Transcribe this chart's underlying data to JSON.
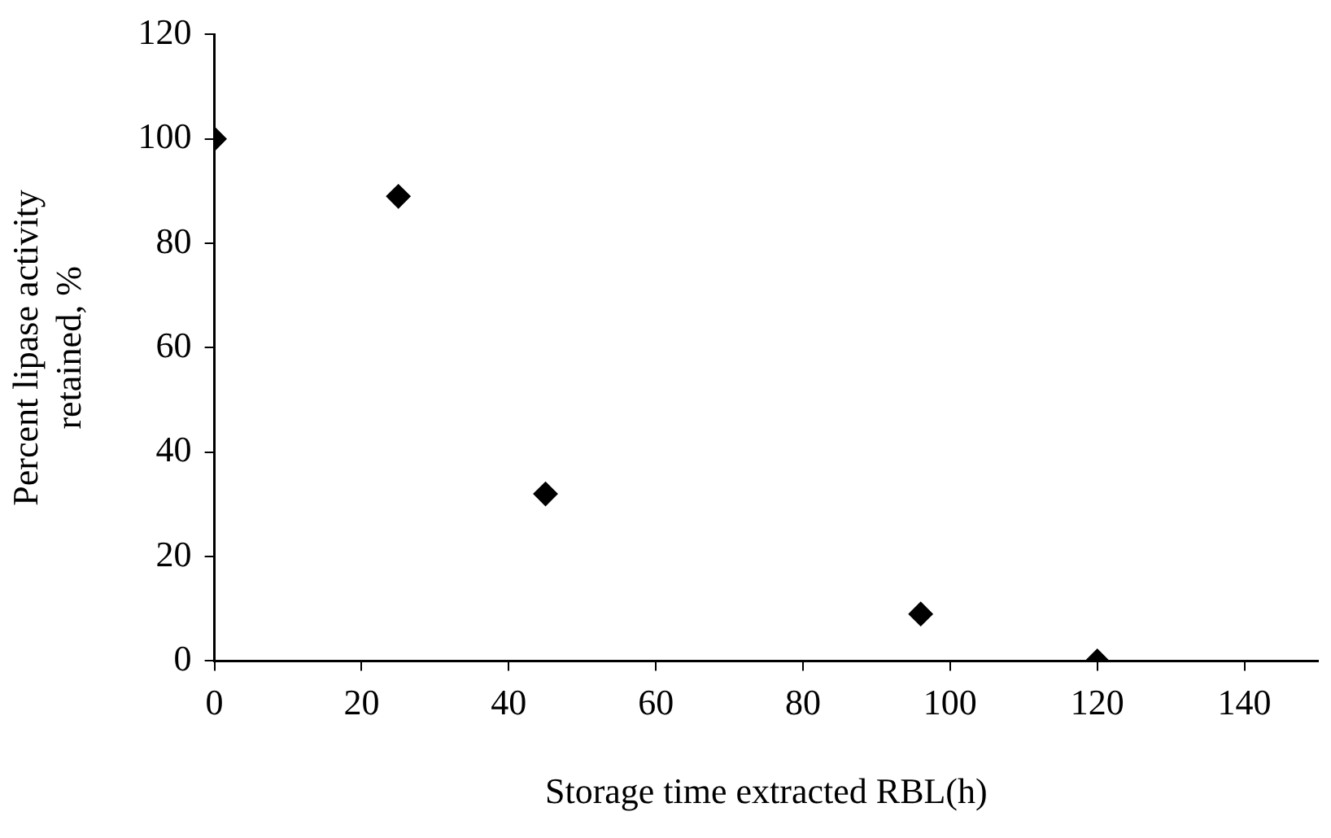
{
  "chart_data": {
    "type": "scatter",
    "xlabel": "Storage time extracted RBL(h)",
    "ylabel": "Percent lipase activity retained, %",
    "x": [
      0,
      25,
      45,
      96,
      120
    ],
    "series": [
      {
        "color": "#000000",
        "values": [
          100,
          89,
          32,
          9,
          0
        ]
      }
    ],
    "xlim": [
      0,
      150
    ],
    "xticks": [
      0,
      20,
      40,
      60,
      80,
      100,
      120,
      140
    ],
    "ylim": [
      0,
      120
    ],
    "yticks": [
      0,
      20,
      40,
      60,
      80,
      100,
      120
    ],
    "marker": "diamond",
    "legend": false
  }
}
